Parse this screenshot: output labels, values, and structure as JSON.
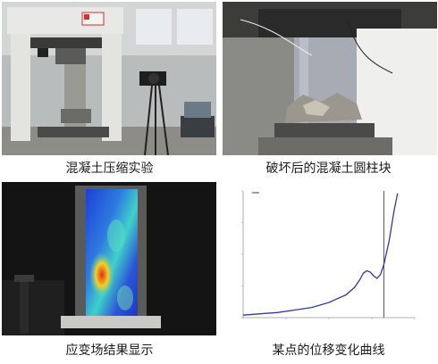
{
  "captions": {
    "top_left": "混凝土压缩实验",
    "top_right": "破坏后的混凝土圆柱块",
    "bottom_left": "应变场结果显示",
    "bottom_right": "某点的位移变化曲线"
  },
  "colors": {
    "curve": "#2f3aa8",
    "cursor_line": "#555555",
    "strain_low": "#1e3fd6",
    "strain_mid": "#3fd1c9",
    "strain_high": "#e03020"
  },
  "chart_data": {
    "type": "line",
    "title": "",
    "xlabel": "",
    "ylabel": "",
    "legend": "top-left",
    "grid": false,
    "xlim": [
      0,
      100
    ],
    "ylim": [
      0,
      100
    ],
    "series": [
      {
        "x": [
          0,
          10,
          20,
          30,
          40,
          50,
          55,
          60,
          65,
          68,
          70,
          72,
          74,
          76,
          78,
          80,
          82,
          85,
          88,
          90
        ],
        "y": [
          2,
          3,
          4,
          6,
          8,
          12,
          15,
          18,
          24,
          30,
          35,
          37,
          36,
          33,
          31,
          34,
          42,
          60,
          85,
          98
        ]
      }
    ],
    "cursor_x": 82
  }
}
